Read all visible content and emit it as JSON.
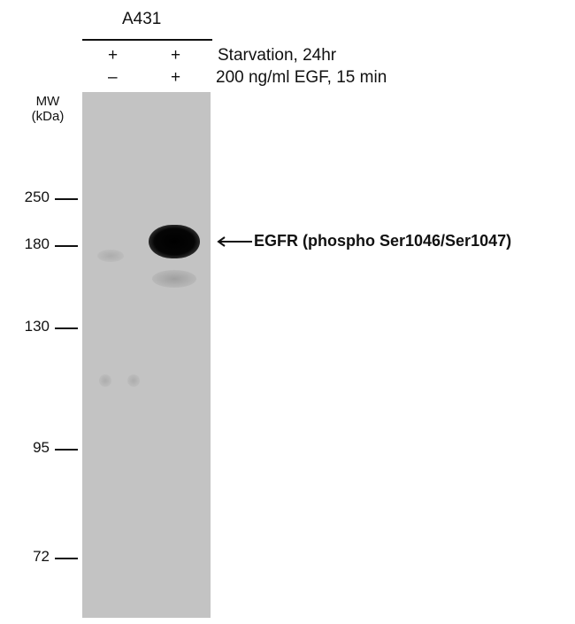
{
  "sample": "A431",
  "conditions": [
    {
      "label": "Starvation, 24hr",
      "lanes": [
        "+",
        "+"
      ]
    },
    {
      "label": "200 ng/ml EGF, 15 min",
      "lanes": [
        "–",
        "+"
      ]
    }
  ],
  "mw_label": "MW",
  "mw_unit": "(kDa)",
  "markers": [
    "250",
    "180",
    "130",
    "95",
    "72"
  ],
  "band_label": "EGFR  (phospho Ser1046/Ser1047)",
  "gel_color": "#c3c3c3"
}
